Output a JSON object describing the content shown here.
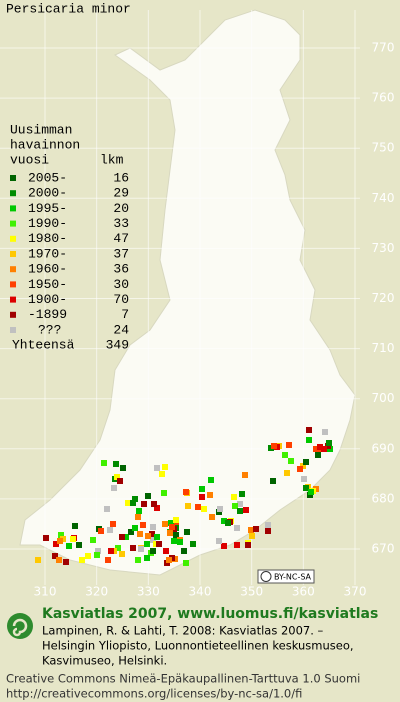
{
  "title": "Persicaria minor",
  "map": {
    "xticks": [
      310,
      320,
      330,
      340,
      350,
      360,
      370
    ],
    "yticks": [
      670,
      680,
      690,
      700,
      710,
      720,
      730,
      740,
      750,
      760,
      770
    ]
  },
  "legend": {
    "heading": [
      "Uusimman",
      "havainnon",
      "vuosi"
    ],
    "count_heading": "lkm",
    "rows": [
      {
        "label": "2005-",
        "count": 16,
        "color": "#006400"
      },
      {
        "label": "2000-",
        "count": 29,
        "color": "#008c00"
      },
      {
        "label": "1995-",
        "count": 20,
        "color": "#00c800"
      },
      {
        "label": "1990-",
        "count": 33,
        "color": "#40f000"
      },
      {
        "label": "1980-",
        "count": 47,
        "color": "#ffff00"
      },
      {
        "label": "1970-",
        "count": 37,
        "color": "#ffc800"
      },
      {
        "label": "1960-",
        "count": 36,
        "color": "#ff8000"
      },
      {
        "label": "1950-",
        "count": 30,
        "color": "#ff4000"
      },
      {
        "label": "1900-",
        "count": 70,
        "color": "#dc0000"
      },
      {
        "label": "-1899",
        "count": 7,
        "color": "#a00000"
      },
      {
        "label": "???",
        "count": 24,
        "color": "#c0c0c0"
      }
    ],
    "total_label": "Yhteensä",
    "total": 349
  },
  "license_badge": "BY-NC-SA",
  "footer": {
    "heading": "Kasviatlas 2007, www.luomus.fi/kasviatlas",
    "citation": [
      "Lampinen, R. & Lahti, T. 2008: Kasviatlas 2007. –",
      "Helsingin Yliopisto, Luonnontieteellinen keskusmuseo,",
      "Kasvimuseo, Helsinki."
    ],
    "license": [
      "Creative Commons Nimeä-Epäkaupallinen-Tarttuva 1.0 Suomi",
      "http://creativecommons.org/licenses/by-nc-sa/1.0/fi"
    ]
  }
}
